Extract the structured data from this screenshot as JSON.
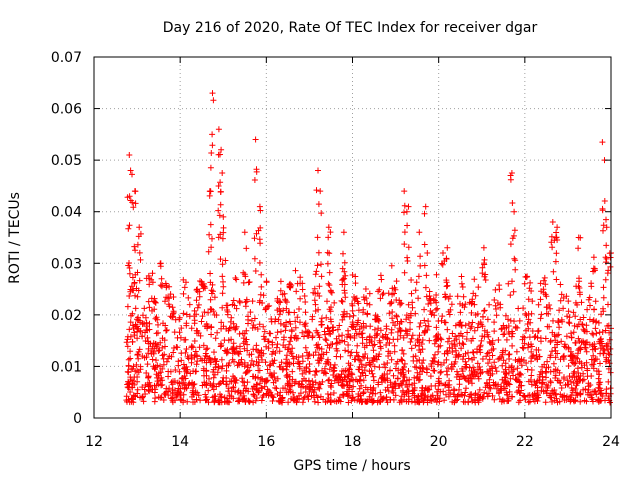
{
  "chart_data": {
    "type": "scatter",
    "title": "Day 216 of 2020, Rate Of TEC Index for receiver dgar",
    "xlabel": "GPS time / hours",
    "ylabel": "ROTI / TECUs",
    "xlim": [
      12,
      24
    ],
    "ylim": [
      0,
      0.07
    ],
    "xticks": [
      12,
      14,
      16,
      18,
      20,
      22,
      24
    ],
    "xtick_labels": [
      "12",
      "14",
      "16",
      "18",
      "20",
      "22",
      "24"
    ],
    "yticks": [
      0,
      0.01,
      0.02,
      0.03,
      0.04,
      0.05,
      0.06,
      0.07
    ],
    "ytick_labels": [
      "0",
      "0.01",
      "0.02",
      "0.03",
      "0.04",
      "0.05",
      "0.06",
      "0.07"
    ],
    "grid": true,
    "marker": "+",
    "color": "#ff0000",
    "data_x_range": [
      12.75,
      24.0
    ],
    "peaks": [
      {
        "x": 12.82,
        "y": 0.051
      },
      {
        "x": 12.85,
        "y": 0.048
      },
      {
        "x": 12.95,
        "y": 0.044
      },
      {
        "x": 13.05,
        "y": 0.037
      },
      {
        "x": 13.55,
        "y": 0.03
      },
      {
        "x": 14.55,
        "y": 0.026
      },
      {
        "x": 14.7,
        "y": 0.044
      },
      {
        "x": 14.75,
        "y": 0.063
      },
      {
        "x": 14.9,
        "y": 0.056
      },
      {
        "x": 14.95,
        "y": 0.052
      },
      {
        "x": 15.0,
        "y": 0.039
      },
      {
        "x": 15.5,
        "y": 0.036
      },
      {
        "x": 15.75,
        "y": 0.054
      },
      {
        "x": 15.85,
        "y": 0.041
      },
      {
        "x": 16.55,
        "y": 0.026
      },
      {
        "x": 17.2,
        "y": 0.048
      },
      {
        "x": 17.25,
        "y": 0.044
      },
      {
        "x": 17.45,
        "y": 0.037
      },
      {
        "x": 17.8,
        "y": 0.036
      },
      {
        "x": 19.2,
        "y": 0.044
      },
      {
        "x": 19.3,
        "y": 0.041
      },
      {
        "x": 19.55,
        "y": 0.036
      },
      {
        "x": 19.7,
        "y": 0.041
      },
      {
        "x": 20.1,
        "y": 0.032
      },
      {
        "x": 20.2,
        "y": 0.033
      },
      {
        "x": 21.05,
        "y": 0.033
      },
      {
        "x": 21.7,
        "y": 0.0475
      },
      {
        "x": 21.75,
        "y": 0.04
      },
      {
        "x": 22.65,
        "y": 0.038
      },
      {
        "x": 22.75,
        "y": 0.037
      },
      {
        "x": 23.25,
        "y": 0.035
      },
      {
        "x": 23.6,
        "y": 0.029
      },
      {
        "x": 23.8,
        "y": 0.0535
      },
      {
        "x": 23.85,
        "y": 0.05
      },
      {
        "x": 23.9,
        "y": 0.037
      },
      {
        "x": 24.0,
        "y": 0.032
      }
    ],
    "bulk": {
      "description": "dense band of ROTI samples between 12.75 and 24 hours",
      "typical_range": [
        0.003,
        0.028
      ]
    }
  }
}
